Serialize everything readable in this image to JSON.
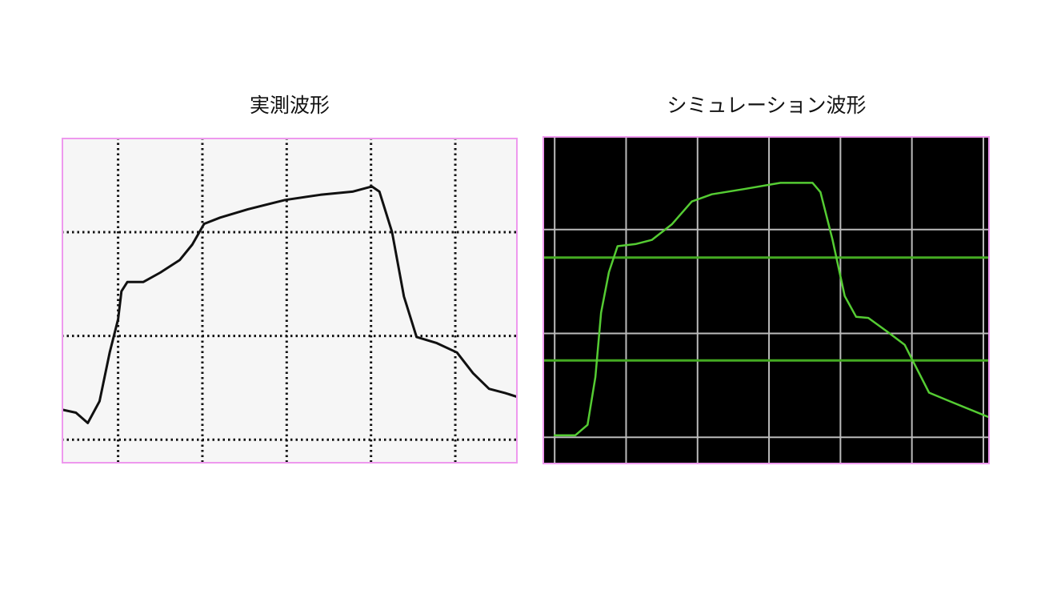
{
  "chart_data": [
    {
      "type": "line",
      "title": "実測波形",
      "background": "#f6f6f6",
      "border_color": "#ee99ee",
      "line_color": "#111111",
      "grid": true,
      "grid_style": "dotted",
      "grid_x": [
        0,
        1,
        2,
        3,
        4
      ],
      "grid_y": [
        0,
        1,
        2
      ],
      "xlim": [
        -0.67,
        4.74
      ],
      "ylim": [
        -0.23,
        2.91
      ],
      "series": [
        {
          "x": [
            -0.67,
            -0.5,
            -0.36,
            -0.22,
            -0.1,
            0,
            0.04,
            0.11,
            0.3,
            0.5,
            0.73,
            0.88,
            1.02,
            1.21,
            1.54,
            1.98,
            2.4,
            2.78,
            3.01,
            3.1,
            3.25,
            3.39,
            3.54,
            3.78,
            4.02,
            4.21,
            4.4,
            4.59,
            4.74
          ],
          "y": [
            0.29,
            0.26,
            0.16,
            0.37,
            0.84,
            1.16,
            1.43,
            1.52,
            1.52,
            1.61,
            1.73,
            1.88,
            2.08,
            2.14,
            2.22,
            2.31,
            2.36,
            2.39,
            2.44,
            2.39,
            2.0,
            1.38,
            0.99,
            0.93,
            0.84,
            0.64,
            0.49,
            0.45,
            0.41
          ]
        }
      ]
    },
    {
      "type": "line",
      "title": "シミュレーション波形",
      "background": "#000000",
      "border_color": "#ee99ee",
      "line_color": "#55cc33",
      "grid": true,
      "grid_style": "solid",
      "grid_color": "#bbbbbb",
      "grid_x": [
        0,
        1,
        2,
        3,
        4,
        5,
        6
      ],
      "grid_y": [
        0,
        1,
        2
      ],
      "threshold_lines": [
        0.74,
        1.73
      ],
      "threshold_color": "#44aa22",
      "xlim": [
        -0.17,
        6.09
      ],
      "ylim": [
        -0.26,
        2.9
      ],
      "series": [
        {
          "x": [
            0,
            0.29,
            0.46,
            0.57,
            0.65,
            0.76,
            0.88,
            1.13,
            1.36,
            1.64,
            1.92,
            2.2,
            2.65,
            3.16,
            3.61,
            3.72,
            3.89,
            4.06,
            4.22,
            4.39,
            4.67,
            4.9,
            5.01,
            5.24,
            5.52,
            6.09
          ],
          "y": [
            0.02,
            0.02,
            0.12,
            0.58,
            1.2,
            1.59,
            1.84,
            1.86,
            1.9,
            2.05,
            2.27,
            2.34,
            2.39,
            2.45,
            2.45,
            2.36,
            1.9,
            1.36,
            1.16,
            1.15,
            1.01,
            0.89,
            0.74,
            0.43,
            0.35,
            0.19
          ]
        }
      ]
    }
  ]
}
